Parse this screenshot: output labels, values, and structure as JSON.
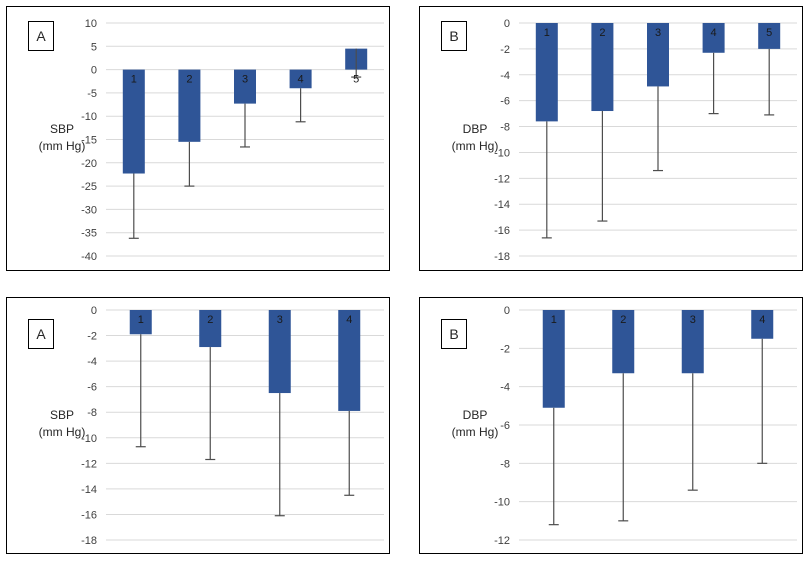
{
  "colors": {
    "bar": "#2F5597",
    "gridline": "#D9D9D9",
    "error_bar": "#4d4d4d",
    "tick_text": "#404040",
    "category_text": "#1a1a1a",
    "panel_border": "#000000"
  },
  "chart_data": [
    {
      "panel": "top-left",
      "label": "A",
      "type": "bar",
      "ylabel": "SBP",
      "ylabel_units": "(mm Hg)",
      "categories": [
        "1",
        "2",
        "3",
        "4",
        "5"
      ],
      "values": [
        -22.3,
        -15.5,
        -7.3,
        -4.0,
        4.5
      ],
      "error_ends": [
        -36.2,
        -25.0,
        -16.6,
        -11.2,
        -1.6
      ],
      "ylim": [
        -40,
        10
      ],
      "ytick_step": 5,
      "grid": true,
      "legend": "none"
    },
    {
      "panel": "top-right",
      "label": "B",
      "type": "bar",
      "ylabel": "DBP",
      "ylabel_units": "(mm Hg)",
      "categories": [
        "1",
        "2",
        "3",
        "4",
        "5"
      ],
      "values": [
        -7.6,
        -6.8,
        -4.9,
        -2.3,
        -2.0
      ],
      "error_ends": [
        -16.6,
        -15.3,
        -11.4,
        -7.0,
        -7.1
      ],
      "ylim": [
        -18,
        0
      ],
      "ytick_step": 2,
      "grid": true,
      "legend": "none"
    },
    {
      "panel": "bottom-left",
      "label": "A",
      "type": "bar",
      "ylabel": "SBP",
      "ylabel_units": "(mm Hg)",
      "categories": [
        "1",
        "2",
        "3",
        "4"
      ],
      "values": [
        -1.9,
        -2.9,
        -6.5,
        -7.9
      ],
      "error_ends": [
        -10.7,
        -11.7,
        -16.1,
        -14.5
      ],
      "ylim": [
        -18,
        0
      ],
      "ytick_step": 2,
      "grid": true,
      "legend": "none"
    },
    {
      "panel": "bottom-right",
      "label": "B",
      "type": "bar",
      "ylabel": "DBP",
      "ylabel_units": "(mm Hg)",
      "categories": [
        "1",
        "2",
        "3",
        "4"
      ],
      "values": [
        -5.1,
        -3.3,
        -3.3,
        -1.5
      ],
      "error_ends": [
        -11.2,
        -11.0,
        -9.4,
        -8.0
      ],
      "ylim": [
        -12,
        0
      ],
      "ytick_step": 2,
      "grid": true,
      "legend": "none"
    }
  ]
}
